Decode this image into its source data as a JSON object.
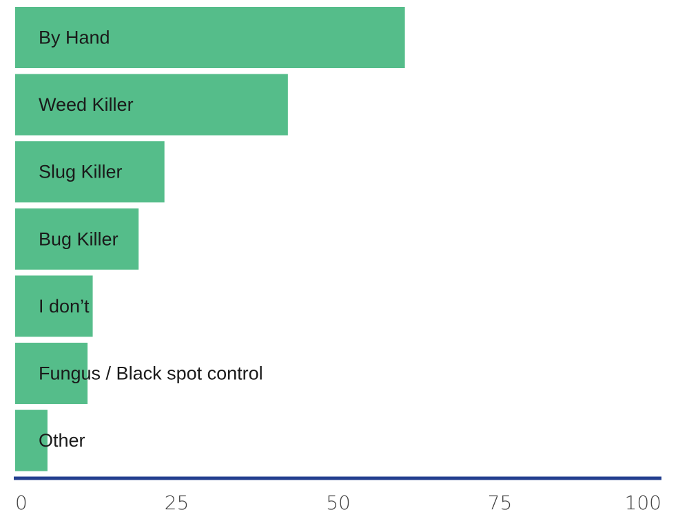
{
  "chart_data": {
    "type": "bar",
    "orientation": "horizontal",
    "categories": [
      "By Hand",
      "Weed Killer",
      "Slug Killer",
      "Bug Killer",
      "I don’t",
      "Fungus / Black spot control",
      "Other"
    ],
    "values": [
      60.3,
      42.2,
      23.1,
      19.1,
      12.0,
      11.2,
      5.0
    ],
    "xlim": [
      0,
      100
    ],
    "xticks": [
      "0",
      "25",
      "50",
      "75",
      "100"
    ],
    "bar_color": "#55bd8a",
    "axis_color": "#233f8f",
    "grid": false,
    "legend": "none"
  }
}
